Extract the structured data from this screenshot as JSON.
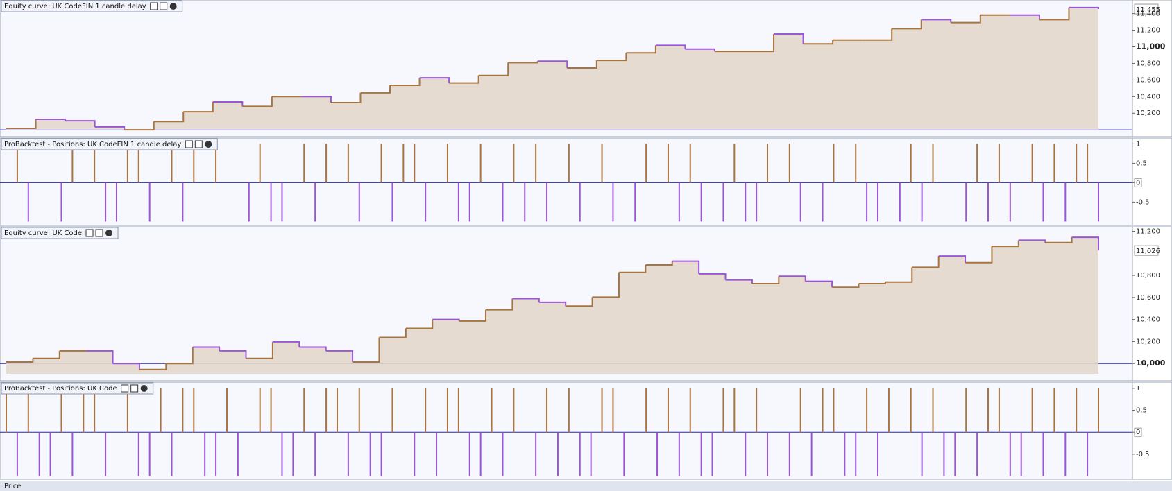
{
  "chart_data": [
    {
      "type": "area",
      "title": "Equity curve: UK CodeFIN 1 candle delay",
      "values": [
        10018,
        10127,
        10109,
        10036,
        10000,
        10100,
        10218,
        10336,
        10282,
        10400,
        10400,
        10327,
        10445,
        10536,
        10627,
        10564,
        10655,
        10809,
        10827,
        10745,
        10836,
        10927,
        11018,
        10973,
        10945,
        10945,
        11155,
        11036,
        11082,
        11082,
        11218,
        11327,
        11291,
        11382,
        11382,
        11327,
        11473,
        11455
      ],
      "ylim": [
        9918,
        11564
      ],
      "yticks": [
        {
          "value": 10200,
          "label": "10,200"
        },
        {
          "value": 10400,
          "label": "10,400"
        },
        {
          "value": 10600,
          "label": "10,600"
        },
        {
          "value": 10800,
          "label": "10,800"
        },
        {
          "value": 11000,
          "label": "11,000",
          "bold": true
        },
        {
          "value": 11200,
          "label": "11,200"
        },
        {
          "value": 11400,
          "label": "11,400"
        }
      ],
      "baseline": 10000,
      "current_value": {
        "value": 11455,
        "label": "11,455"
      },
      "up_color": "#a8743f",
      "down_color": "#9b55d8",
      "fill": "#e4d7cc",
      "baseline_color": "#2a2a9a"
    },
    {
      "type": "positions",
      "title": "ProBacktest - Positions: UK CodeFIN 1 candle delay",
      "values": [
        0,
        1,
        -1,
        0,
        0,
        -1,
        1,
        0,
        1,
        -1,
        -1,
        1,
        1,
        -1,
        0,
        1,
        -1,
        1,
        0,
        1,
        0,
        0,
        -1,
        1,
        -1,
        -1,
        0,
        1,
        -1,
        1,
        0,
        1,
        -1,
        0,
        1,
        -1,
        1,
        1,
        -1,
        0,
        1,
        -1,
        -1,
        1,
        0,
        -1,
        1,
        -1,
        1,
        -1,
        0,
        1,
        -1,
        0,
        1,
        -1,
        0,
        -1,
        1,
        0,
        1,
        -1,
        1,
        -1,
        0,
        -1,
        1,
        -1,
        -1,
        1,
        0,
        1,
        -1,
        0,
        -1,
        1,
        0,
        1,
        -1,
        -1,
        0,
        -1,
        1,
        -1,
        1,
        0,
        0,
        -1,
        1,
        -1,
        1,
        -1,
        0,
        1,
        -1,
        1,
        -1,
        1,
        1,
        -1
      ],
      "ylim": [
        -1.1,
        1.15
      ],
      "yticks": [
        1,
        0.5,
        0,
        -0.5
      ],
      "up_color": "#a8743f",
      "down_color": "#9b55d8"
    },
    {
      "type": "area",
      "title": "Equity curve: UK Code",
      "values": [
        10014,
        10047,
        10115,
        10115,
        10000,
        9946,
        10000,
        10149,
        10115,
        10047,
        10197,
        10149,
        10115,
        10014,
        10237,
        10319,
        10400,
        10386,
        10488,
        10590,
        10556,
        10522,
        10603,
        10827,
        10895,
        10929,
        10814,
        10759,
        10725,
        10793,
        10746,
        10692,
        10725,
        10739,
        10874,
        10976,
        10915,
        11064,
        11119,
        11098,
        11146,
        11026
      ],
      "ylim": [
        9844,
        11241
      ],
      "yticks": [
        {
          "value": 10000,
          "label": "10,000",
          "bold": true
        },
        {
          "value": 10200,
          "label": "10,200"
        },
        {
          "value": 10400,
          "label": "10,400"
        },
        {
          "value": 10600,
          "label": "10,600"
        },
        {
          "value": 10800,
          "label": "10,800"
        },
        {
          "value": 11200,
          "label": "11,200"
        }
      ],
      "baseline": 10000,
      "current_value": {
        "value": 11026,
        "label": "11,026"
      },
      "up_color": "#a8743f",
      "down_color": "#9b55d8",
      "fill": "#e4d7cc",
      "baseline_color": "#2a2a9a"
    },
    {
      "type": "positions",
      "title": "ProBacktest - Positions: UK Code",
      "values": [
        1,
        -1,
        1,
        -1,
        -1,
        1,
        -1,
        1,
        1,
        -1,
        0,
        1,
        -1,
        -1,
        1,
        -1,
        1,
        1,
        -1,
        -1,
        1,
        -1,
        0,
        1,
        1,
        -1,
        -1,
        1,
        -1,
        1,
        1,
        -1,
        1,
        -1,
        -1,
        1,
        0,
        -1,
        1,
        -1,
        1,
        1,
        -1,
        -1,
        1,
        -1,
        1,
        0,
        -1,
        1,
        -1,
        1,
        -1,
        -1,
        1,
        1,
        -1,
        0,
        1,
        -1,
        1,
        -1,
        1,
        -1,
        -1,
        1,
        1,
        -1,
        1,
        -1,
        0,
        -1,
        1,
        -1,
        1,
        1,
        -1,
        -1,
        1,
        -1,
        1,
        0,
        1,
        -1,
        1,
        -1,
        -1,
        1,
        -1,
        1,
        1,
        -1,
        -1,
        1,
        -1,
        1,
        -1,
        1,
        -1,
        1
      ],
      "ylim": [
        -1.07,
        1.14
      ],
      "yticks": [
        1,
        0.5,
        0,
        -0.5
      ],
      "up_color": "#a8743f",
      "down_color": "#9b55d8"
    }
  ],
  "status_bar": {
    "label": "Price"
  }
}
